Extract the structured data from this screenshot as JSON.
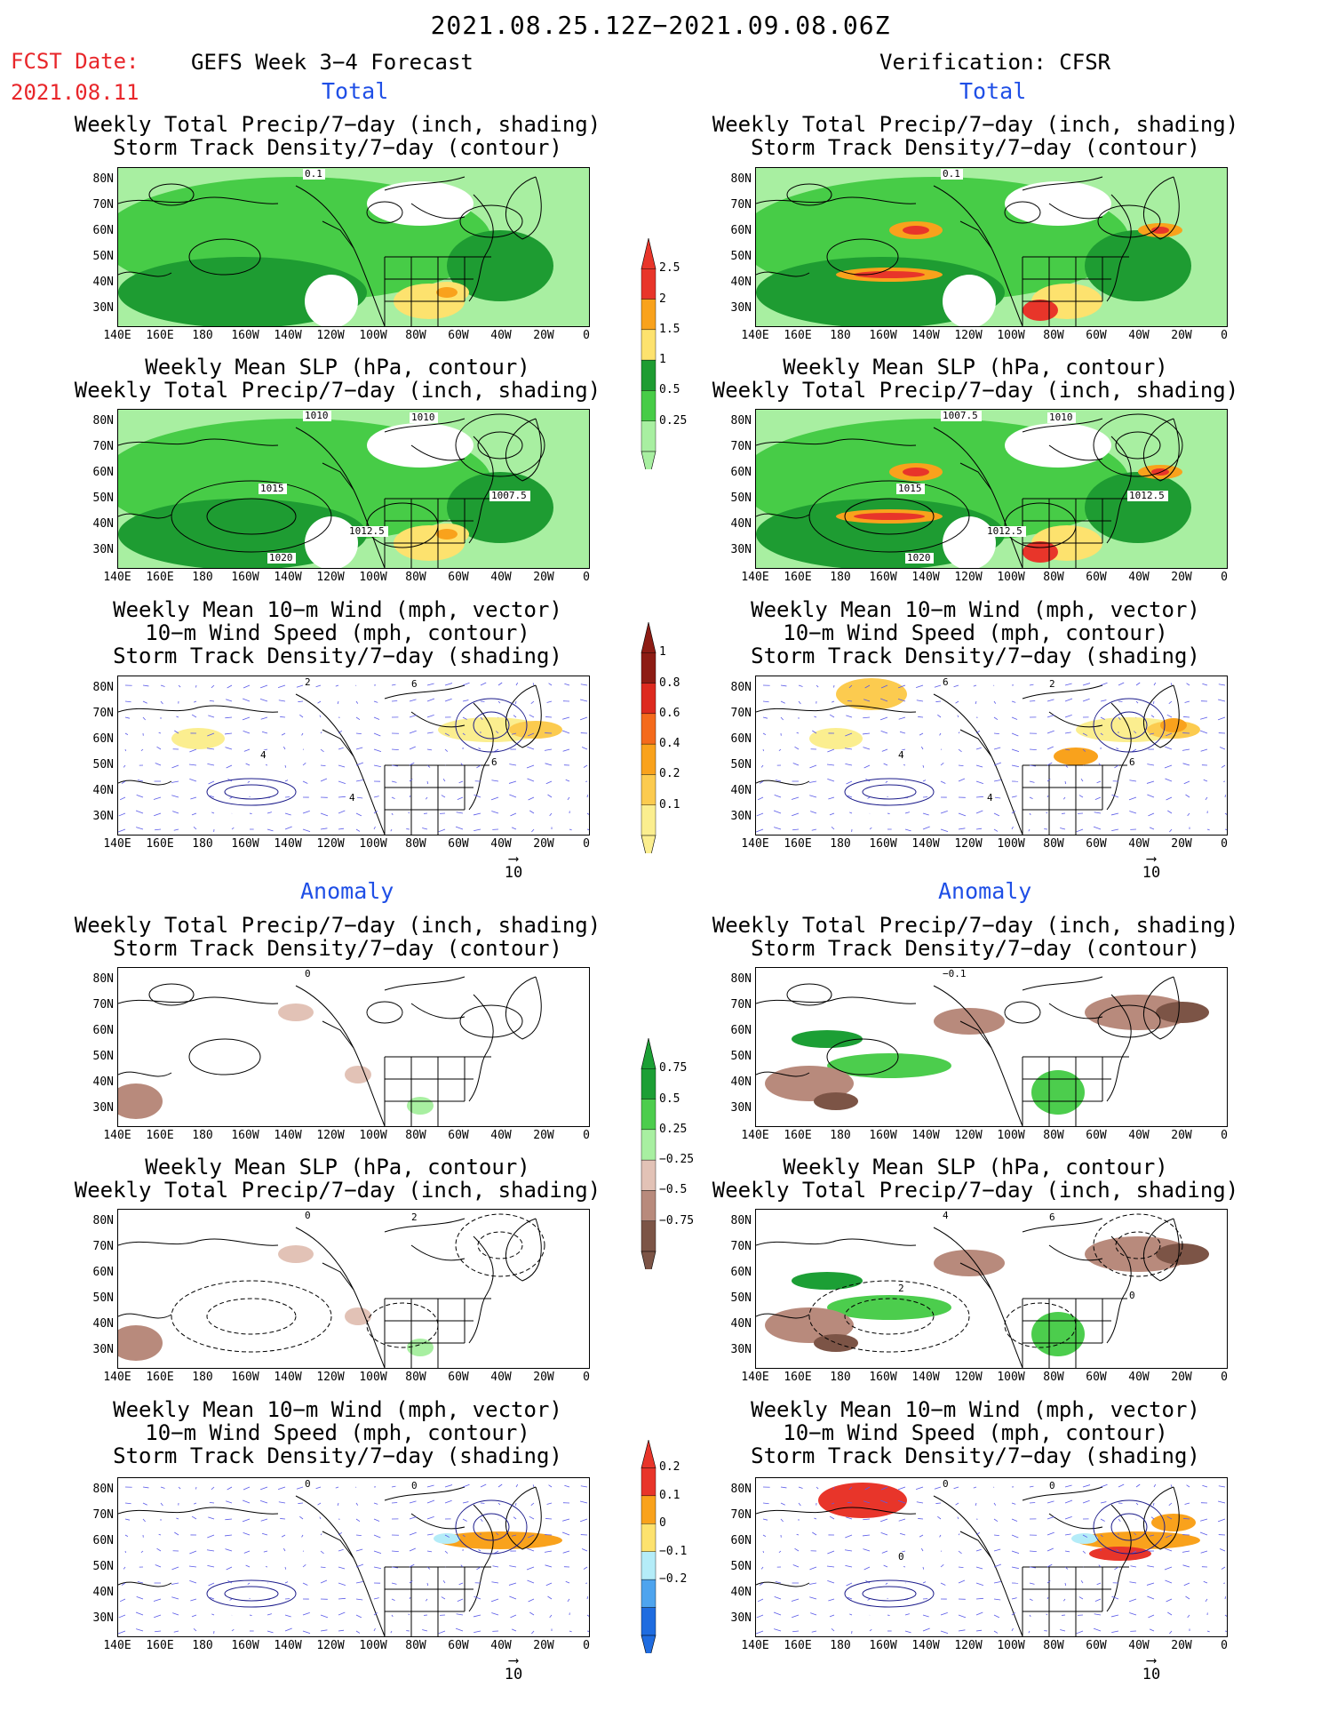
{
  "header": {
    "date_range": "2021.08.25.12Z−2021.09.08.06Z",
    "fcst_label": "FCST Date:",
    "fcst_date": "2021.08.11",
    "left_title": "GEFS Week 3−4 Forecast",
    "right_title": "Verification: CFSR"
  },
  "sections": {
    "total": "Total",
    "anomaly": "Anomaly"
  },
  "panel_titles": {
    "precip_track": [
      "Weekly Total Precip/7−day (inch, shading)",
      "Storm Track Density/7−day (contour)"
    ],
    "slp_precip": [
      "Weekly Mean SLP (hPa, contour)",
      "Weekly Total Precip/7−day (inch, shading)"
    ],
    "wind_track": [
      "Weekly Mean 10−m Wind (mph, vector)",
      "10−m Wind Speed (mph, contour)",
      "Storm Track Density/7−day (shading)"
    ]
  },
  "axes": {
    "lat_labels": [
      "80N",
      "70N",
      "60N",
      "50N",
      "40N",
      "30N"
    ],
    "lon_labels": [
      "140E",
      "160E",
      "180",
      "160W",
      "140W",
      "120W",
      "100W",
      "80W",
      "60W",
      "40W",
      "20W",
      "0"
    ]
  },
  "vector_reference": "10",
  "colorbars": {
    "precip_total": {
      "labels": [
        "2.5",
        "2",
        "1.5",
        "1",
        "0.5",
        "0.25"
      ],
      "colors": [
        "#e8352a",
        "#f9a21c",
        "#fde26e",
        "#1e9c32",
        "#47cc47",
        "#a8efa1"
      ]
    },
    "track_total": {
      "labels": [
        "1",
        "0.8",
        "0.6",
        "0.4",
        "0.2",
        "0.1"
      ],
      "colors": [
        "#8d1c14",
        "#dd2a1f",
        "#f46a1c",
        "#f9a21c",
        "#fccb4f",
        "#fbee8f"
      ]
    },
    "precip_anom": {
      "labels": [
        "0.75",
        "0.5",
        "0.25",
        "−0.25",
        "−0.5",
        "−0.75"
      ],
      "colors": [
        "#1c9f35",
        "#4ccd4d",
        "#a8efa1",
        "#e2c2b6",
        "#b88a7c",
        "#7c5446"
      ]
    },
    "track_anom": {
      "labels": [
        "0.2",
        "0.1",
        "0",
        "−0.1",
        "−0.2"
      ],
      "colors": [
        "#e8352a",
        "#f9a21c",
        "#fde26e",
        "#b4ecf8",
        "#4ea4ee",
        "#1f6ce0"
      ]
    }
  },
  "contour_labels": {
    "t_slp_left": [
      "1010",
      "1010",
      "1015",
      "1007.5",
      "1012.5",
      "1020"
    ],
    "t_slp_right": [
      "1007.5",
      "1010",
      "1015",
      "1012.5",
      "1012.5",
      "1020"
    ],
    "t_track_left": [
      "0.1"
    ],
    "t_track_right": [
      "0.1"
    ],
    "t_wind_left": [
      "2",
      "6",
      "4",
      "6",
      "4"
    ],
    "t_wind_right": [
      "6",
      "2",
      "4",
      "6",
      "4"
    ],
    "a_track_left": [
      "0"
    ],
    "a_track_right": [
      "−0.1"
    ],
    "a_slp_left": [
      "0",
      "2"
    ],
    "a_slp_right": [
      "4",
      "6",
      "2",
      "0"
    ],
    "a_wind_left": [
      "0",
      "0"
    ],
    "a_wind_right": [
      "0",
      "0",
      "0"
    ]
  }
}
